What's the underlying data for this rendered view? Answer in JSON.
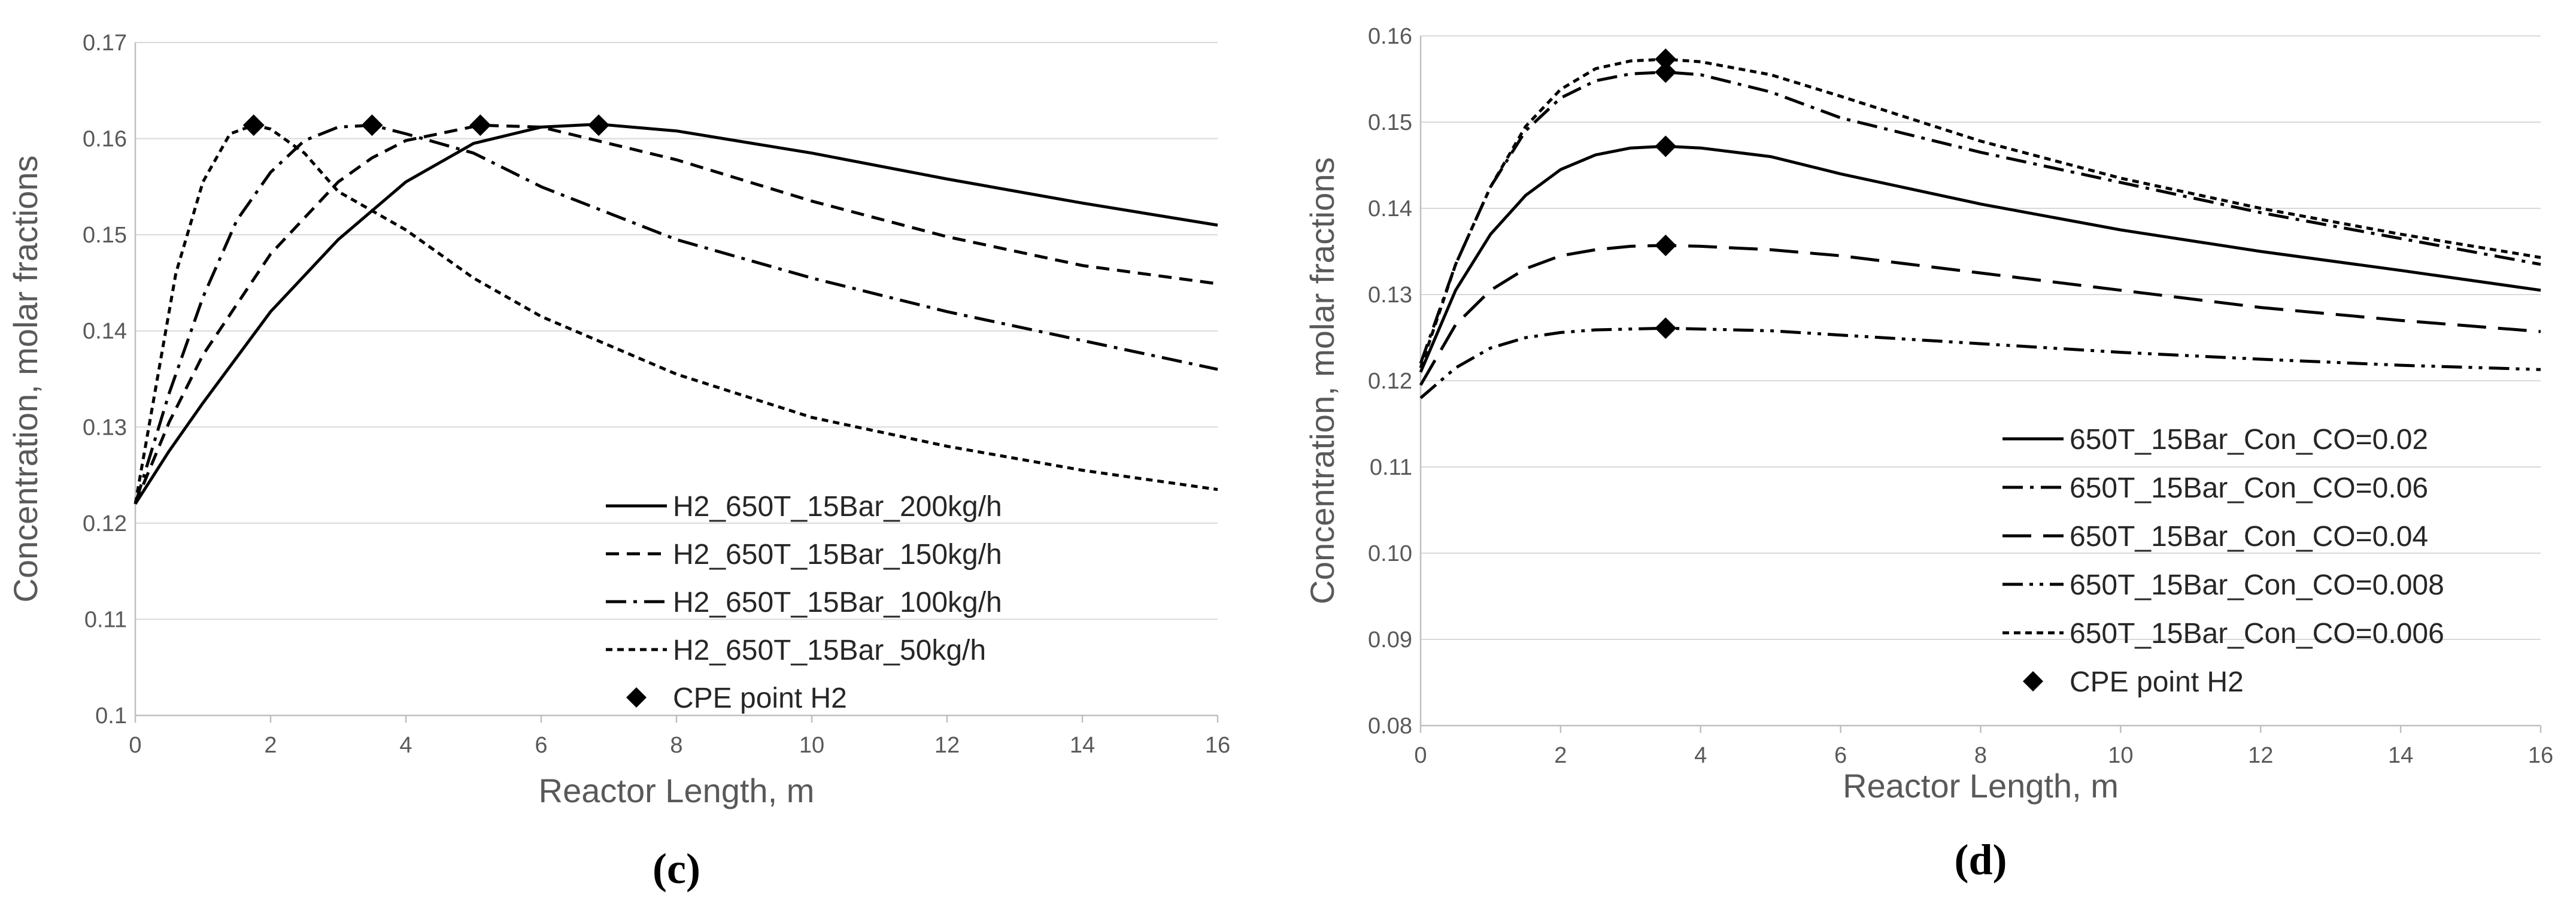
{
  "chart_data": [
    {
      "type": "line",
      "panel_label": "(c)",
      "xlabel": "Reactor Length, m",
      "ylabel": "Concentration, molar  fractions",
      "xlim": [
        0,
        16
      ],
      "ylim": [
        0.1,
        0.17
      ],
      "x_ticks": [
        0,
        2,
        4,
        6,
        8,
        10,
        12,
        14,
        16
      ],
      "y_ticks": [
        0.1,
        0.11,
        0.12,
        0.13,
        0.14,
        0.15,
        0.16,
        0.17
      ],
      "y_tick_labels": [
        "0.1",
        "0.11",
        "0.12",
        "0.13",
        "0.14",
        "0.15",
        "0.16",
        "0.17"
      ],
      "grid": "horizontal",
      "legend_position": "bottom-right",
      "series": [
        {
          "name": "H2_650T_15Bar_200kg/h",
          "dash": "solid",
          "x": [
            0,
            0.5,
            1,
            2,
            3,
            4,
            5,
            6,
            6.85,
            8,
            10,
            12,
            14,
            16
          ],
          "y": [
            0.122,
            0.1275,
            0.1325,
            0.142,
            0.1495,
            0.1555,
            0.1595,
            0.1612,
            0.1615,
            0.1608,
            0.1585,
            0.1558,
            0.1533,
            0.151
          ]
        },
        {
          "name": "H2_650T_15Bar_150kg/h",
          "dash": "dashed",
          "x": [
            0,
            0.5,
            1,
            2,
            3,
            3.5,
            4,
            5.1,
            6,
            8,
            10,
            12,
            14,
            16
          ],
          "y": [
            0.122,
            0.1305,
            0.1375,
            0.148,
            0.1555,
            0.158,
            0.1598,
            0.1614,
            0.1612,
            0.1578,
            0.1535,
            0.1498,
            0.1468,
            0.1449
          ]
        },
        {
          "name": "H2_650T_15Bar_100kg/h",
          "dash": "dashdot",
          "x": [
            0,
            0.5,
            1,
            1.5,
            2,
            2.5,
            3,
            3.5,
            4,
            5,
            6,
            8,
            10,
            12,
            14,
            16
          ],
          "y": [
            0.122,
            0.1335,
            0.1435,
            0.1515,
            0.1565,
            0.1598,
            0.1612,
            0.1614,
            0.1605,
            0.1585,
            0.155,
            0.1495,
            0.1455,
            0.142,
            0.139,
            0.136
          ]
        },
        {
          "name": "H2_650T_15Bar_50kg/h",
          "dash": "dotted",
          "x": [
            0,
            0.3,
            0.6,
            1,
            1.4,
            1.75,
            2,
            2.5,
            3,
            4,
            5,
            6,
            8,
            10,
            12,
            14,
            16
          ],
          "y": [
            0.122,
            0.134,
            0.146,
            0.1555,
            0.1605,
            0.1614,
            0.161,
            0.1585,
            0.1545,
            0.1505,
            0.1455,
            0.1415,
            0.1355,
            0.131,
            0.128,
            0.1255,
            0.1235
          ]
        }
      ],
      "cpe_points": {
        "name": "CPE point H2",
        "x": [
          1.75,
          3.5,
          5.1,
          6.85
        ],
        "y": [
          0.1614,
          0.1614,
          0.1614,
          0.1614
        ]
      }
    },
    {
      "type": "line",
      "panel_label": "(d)",
      "xlabel": "Reactor Length, m",
      "ylabel": "Concentration, molar  fractions",
      "xlim": [
        0,
        16
      ],
      "ylim": [
        0.08,
        0.16
      ],
      "x_ticks": [
        0,
        2,
        4,
        6,
        8,
        10,
        12,
        14,
        16
      ],
      "y_ticks": [
        0.08,
        0.09,
        0.1,
        0.11,
        0.12,
        0.13,
        0.14,
        0.15,
        0.16
      ],
      "y_tick_labels": [
        "0.08",
        "0.09",
        "0.10",
        "0.11",
        "0.12",
        "0.13",
        "0.14",
        "0.15",
        "0.16"
      ],
      "grid": "horizontal",
      "legend_position": "bottom-right",
      "series": [
        {
          "name": "650T_15Bar_Con_CO=0.02",
          "dash": "solid",
          "x": [
            0,
            0.5,
            1,
            1.5,
            2,
            2.5,
            3,
            3.5,
            4,
            5,
            6,
            8,
            10,
            12,
            14,
            16
          ],
          "y": [
            0.121,
            0.1305,
            0.137,
            0.1415,
            0.1445,
            0.1462,
            0.147,
            0.1472,
            0.147,
            0.146,
            0.144,
            0.1405,
            0.1375,
            0.135,
            0.1328,
            0.1305
          ]
        },
        {
          "name": "650T_15Bar_Con_CO=0.06",
          "dash": "dashdot",
          "x": [
            0,
            0.5,
            1,
            1.5,
            2,
            2.5,
            3,
            3.5,
            4,
            5,
            6,
            8,
            10,
            12,
            14,
            16
          ],
          "y": [
            0.122,
            0.1335,
            0.1425,
            0.149,
            0.1528,
            0.1548,
            0.1556,
            0.1558,
            0.1555,
            0.1535,
            0.1505,
            0.1465,
            0.143,
            0.1395,
            0.1365,
            0.1335
          ]
        },
        {
          "name": "650T_15Bar_Con_CO=0.04",
          "dash": "longdash",
          "x": [
            0,
            0.5,
            1,
            1.5,
            2,
            2.5,
            3,
            3.5,
            4,
            5,
            6,
            8,
            10,
            12,
            14,
            16
          ],
          "y": [
            0.1195,
            0.1265,
            0.1305,
            0.133,
            0.1345,
            0.1352,
            0.1356,
            0.1357,
            0.1356,
            0.1352,
            0.1345,
            0.1325,
            0.1305,
            0.1285,
            0.127,
            0.1257
          ]
        },
        {
          "name": "650T_15Bar_Con_CO=0.008",
          "dash": "dashdotdot",
          "x": [
            0,
            0.5,
            1,
            1.5,
            2,
            2.5,
            3,
            3.5,
            4,
            5,
            6,
            8,
            10,
            12,
            14,
            16
          ],
          "y": [
            0.118,
            0.1215,
            0.1238,
            0.125,
            0.1256,
            0.1259,
            0.126,
            0.1261,
            0.126,
            0.1258,
            0.1253,
            0.1243,
            0.1233,
            0.1225,
            0.1218,
            0.1213
          ]
        },
        {
          "name": "650T_15Bar_Con_CO=0.006",
          "dash": "dotted",
          "x": [
            0,
            0.5,
            1,
            1.5,
            2,
            2.5,
            3,
            3.5,
            4,
            5,
            6,
            8,
            10,
            12,
            14,
            16
          ],
          "y": [
            0.1215,
            0.1335,
            0.1425,
            0.1495,
            0.1538,
            0.1562,
            0.1571,
            0.1573,
            0.157,
            0.1555,
            0.153,
            0.1478,
            0.1435,
            0.14,
            0.137,
            0.1343
          ]
        }
      ],
      "cpe_points": {
        "name": "CPE point H2",
        "x": [
          3.5,
          3.5,
          3.5,
          3.5,
          3.5
        ],
        "y": [
          0.1573,
          0.1558,
          0.1472,
          0.1357,
          0.1261
        ]
      }
    }
  ],
  "styles": {
    "line_color": "#000000",
    "grid_color": "#d9d9d9",
    "text_color": "#595959",
    "legend_text_color": "#262626",
    "background": "#ffffff"
  }
}
